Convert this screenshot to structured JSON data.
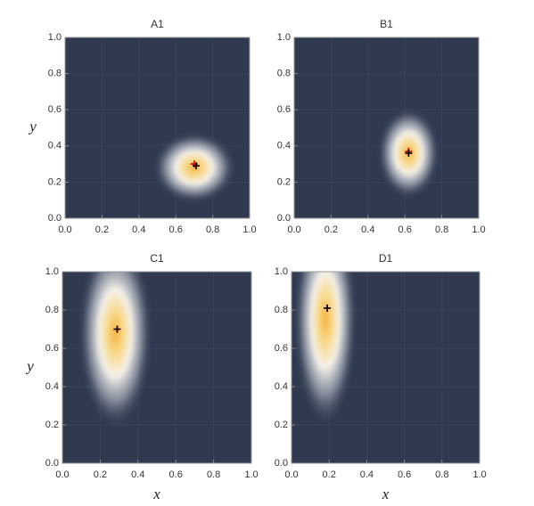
{
  "chart_data": [
    {
      "type": "density",
      "title": "A1",
      "ylabel": "y",
      "density": {
        "x": 0.7,
        "y": 0.28,
        "sx": 0.08,
        "sy": 0.07
      },
      "series": [
        {
          "color": "#d40000",
          "x": [
            0.7
          ],
          "y": [
            0.3
          ]
        },
        {
          "color": "#000000",
          "x": [
            0.71
          ],
          "y": [
            0.29
          ]
        }
      ],
      "xlim": [
        0,
        1
      ],
      "ylim": [
        0,
        1
      ],
      "xticks": [
        {
          "value": 0,
          "label": "0.0"
        },
        0.2,
        0.4,
        0.6,
        0.8,
        {
          "value": 1,
          "label": "1.0"
        }
      ],
      "yticks": [
        {
          "value": 0,
          "label": "0.0"
        },
        0.2,
        0.4,
        0.6,
        0.8,
        {
          "value": 1,
          "label": "1.0"
        }
      ],
      "grid": true
    },
    {
      "type": "density",
      "title": "B1",
      "density": {
        "x": 0.62,
        "y": 0.36,
        "sx": 0.06,
        "sy": 0.09
      },
      "series": [
        {
          "color": "#d40000",
          "x": [
            0.62
          ],
          "y": [
            0.37
          ]
        },
        {
          "color": "#000000",
          "x": [
            0.62
          ],
          "y": [
            0.36
          ]
        }
      ],
      "xlim": [
        0,
        1
      ],
      "ylim": [
        0,
        1
      ],
      "xticks": [
        {
          "value": 0,
          "label": "0.0"
        },
        0.2,
        0.4,
        0.6,
        0.8,
        {
          "value": 1,
          "label": "1.0"
        }
      ],
      "yticks": [
        {
          "value": 0,
          "label": "0.0"
        },
        0.2,
        0.4,
        0.6,
        0.8,
        {
          "value": 1,
          "label": "1.0"
        }
      ],
      "grid": true
    },
    {
      "type": "density",
      "title": "C1",
      "xlabel": "x",
      "ylabel": "y",
      "density": {
        "x": 0.28,
        "y": 0.68,
        "sx": 0.07,
        "sy": 0.18
      },
      "series": [
        {
          "color": "#d40000",
          "x": [
            0.29
          ],
          "y": [
            0.7
          ]
        },
        {
          "color": "#000000",
          "x": [
            0.29
          ],
          "y": [
            0.7
          ]
        }
      ],
      "xlim": [
        0,
        1
      ],
      "ylim": [
        0,
        1
      ],
      "xticks": [
        {
          "value": 0,
          "label": "0.0"
        },
        0.2,
        0.4,
        0.6,
        0.8,
        {
          "value": 1,
          "label": "1.0"
        }
      ],
      "yticks": [
        {
          "value": 0,
          "label": "0.0"
        },
        0.2,
        0.4,
        0.6,
        0.8,
        {
          "value": 1,
          "label": "1.0"
        }
      ],
      "grid": true
    },
    {
      "type": "density",
      "title": "D1",
      "xlabel": "x",
      "density": {
        "x": 0.18,
        "y": 0.75,
        "sx": 0.06,
        "sy": 0.2
      },
      "series": [
        {
          "color": "#d40000",
          "x": [
            0.19
          ],
          "y": [
            0.81
          ]
        },
        {
          "color": "#000000",
          "x": [
            0.19
          ],
          "y": [
            0.81
          ]
        }
      ],
      "xlim": [
        0,
        1
      ],
      "ylim": [
        0,
        1
      ],
      "xticks": [
        {
          "value": 0,
          "label": "0.0"
        },
        0.2,
        0.4,
        0.6,
        0.8,
        {
          "value": 1,
          "label": "1.0"
        }
      ],
      "yticks": [
        {
          "value": 0,
          "label": "0.0"
        },
        0.2,
        0.4,
        0.6,
        0.8,
        {
          "value": 1,
          "label": "1.0"
        }
      ],
      "grid": true
    }
  ]
}
